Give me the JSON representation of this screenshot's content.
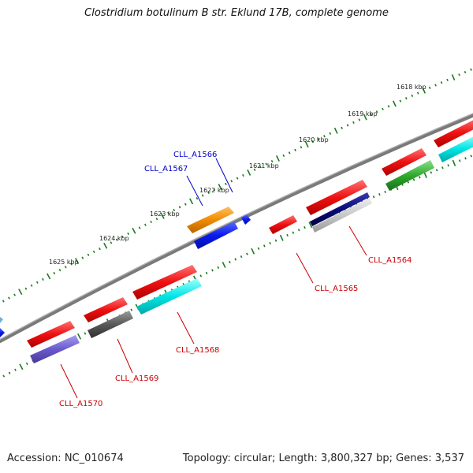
{
  "title": "Clostridium botulinum B str. Eklund 17B, complete genome",
  "footer": {
    "accession": "Accession: NC_010674",
    "summary": "Topology: circular; Length: 3,800,327 bp; Genes: 3,537"
  },
  "ticks": [
    {
      "label": "1618 kbp"
    },
    {
      "label": "1619 kbp"
    },
    {
      "label": "1620 kbp"
    },
    {
      "label": "1621 kbp"
    },
    {
      "label": "1622 kbp"
    },
    {
      "label": "1623 kbp"
    },
    {
      "label": "1624 kbp"
    },
    {
      "label": "1625 kbp"
    }
  ],
  "gene_labels": [
    {
      "name": "CLL_A1566",
      "color": "#0000cc"
    },
    {
      "name": "CLL_A1567",
      "color": "#0000cc"
    },
    {
      "name": "CLL_A1564",
      "color": "#cc0000"
    },
    {
      "name": "CLL_A1565",
      "color": "#cc0000"
    },
    {
      "name": "CLL_A1568",
      "color": "#cc0000"
    },
    {
      "name": "CLL_A1569",
      "color": "#cc0000"
    },
    {
      "name": "CLL_A1570",
      "color": "#cc0000"
    }
  ],
  "colors": {
    "backbone": "#7a7a7a",
    "tick": "#1a7a1a",
    "red": "#ee1111",
    "blue": "#0a1aee",
    "orange": "#f08c00",
    "cyan": "#00e5e5",
    "green": "#2eaa2e",
    "navy": "#0a0a78",
    "gray": "#585858",
    "purple": "#6a5acd",
    "lightgray": "#c8c8c8"
  }
}
